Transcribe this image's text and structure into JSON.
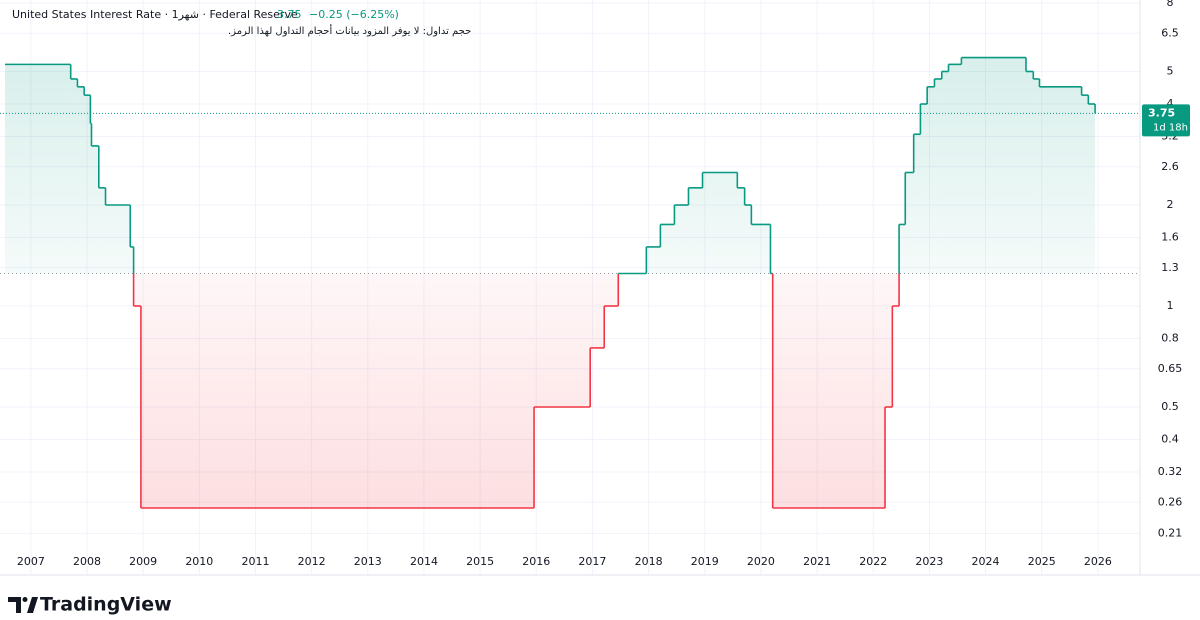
{
  "chart_data": {
    "type": "line",
    "title": "United States Interest Rate · 1شهر · Federal Reserve",
    "change": "−0.25 (−6.25%)",
    "volume_note": "حجم تداول: لا يوفر المزود بيانات أحجام التداول لهذا الرمز.",
    "countdown": "1d 18h",
    "brand": "TradingView",
    "step": true,
    "log_scale": true,
    "grid": true,
    "baseline": 1.25,
    "color_above": "#089981",
    "color_below": "#f23645",
    "x": [
      2006.54,
      2007.71,
      2007.83,
      2007.95,
      2008.06,
      2008.08,
      2008.21,
      2008.33,
      2008.77,
      2008.83,
      2008.96,
      2015.96,
      2016.96,
      2017.21,
      2017.46,
      2017.96,
      2018.21,
      2018.46,
      2018.71,
      2018.96,
      2019.58,
      2019.71,
      2019.83,
      2020.17,
      2020.21,
      2022.21,
      2022.34,
      2022.46,
      2022.57,
      2022.72,
      2022.84,
      2022.96,
      2023.09,
      2023.22,
      2023.34,
      2023.57,
      2024.72,
      2024.85,
      2024.96,
      2025.71,
      2025.83,
      2025.95
    ],
    "values": [
      5.25,
      4.75,
      4.5,
      4.25,
      3.5,
      3.0,
      2.25,
      2.0,
      1.5,
      1.0,
      0.25,
      0.5,
      0.75,
      1.0,
      1.25,
      1.5,
      1.75,
      2.0,
      2.25,
      2.5,
      2.25,
      2.0,
      1.75,
      1.25,
      0.25,
      0.5,
      1.0,
      1.75,
      2.5,
      3.25,
      4.0,
      4.5,
      4.75,
      5.0,
      5.25,
      5.5,
      5.0,
      4.75,
      4.5,
      4.25,
      4.0,
      3.75
    ],
    "xlim": [
      2006.54,
      2026.75
    ],
    "xticks": [
      2007,
      2008,
      2009,
      2010,
      2011,
      2012,
      2013,
      2014,
      2015,
      2016,
      2017,
      2018,
      2019,
      2020,
      2021,
      2022,
      2023,
      2024,
      2025,
      2026
    ],
    "ylim": [
      0.19,
      8
    ],
    "yticks": [
      8,
      6.5,
      5,
      4,
      3.2,
      2.6,
      2,
      1.6,
      1.3,
      1,
      0.8,
      0.65,
      0.5,
      0.4,
      0.32,
      0.26,
      0.21
    ]
  }
}
